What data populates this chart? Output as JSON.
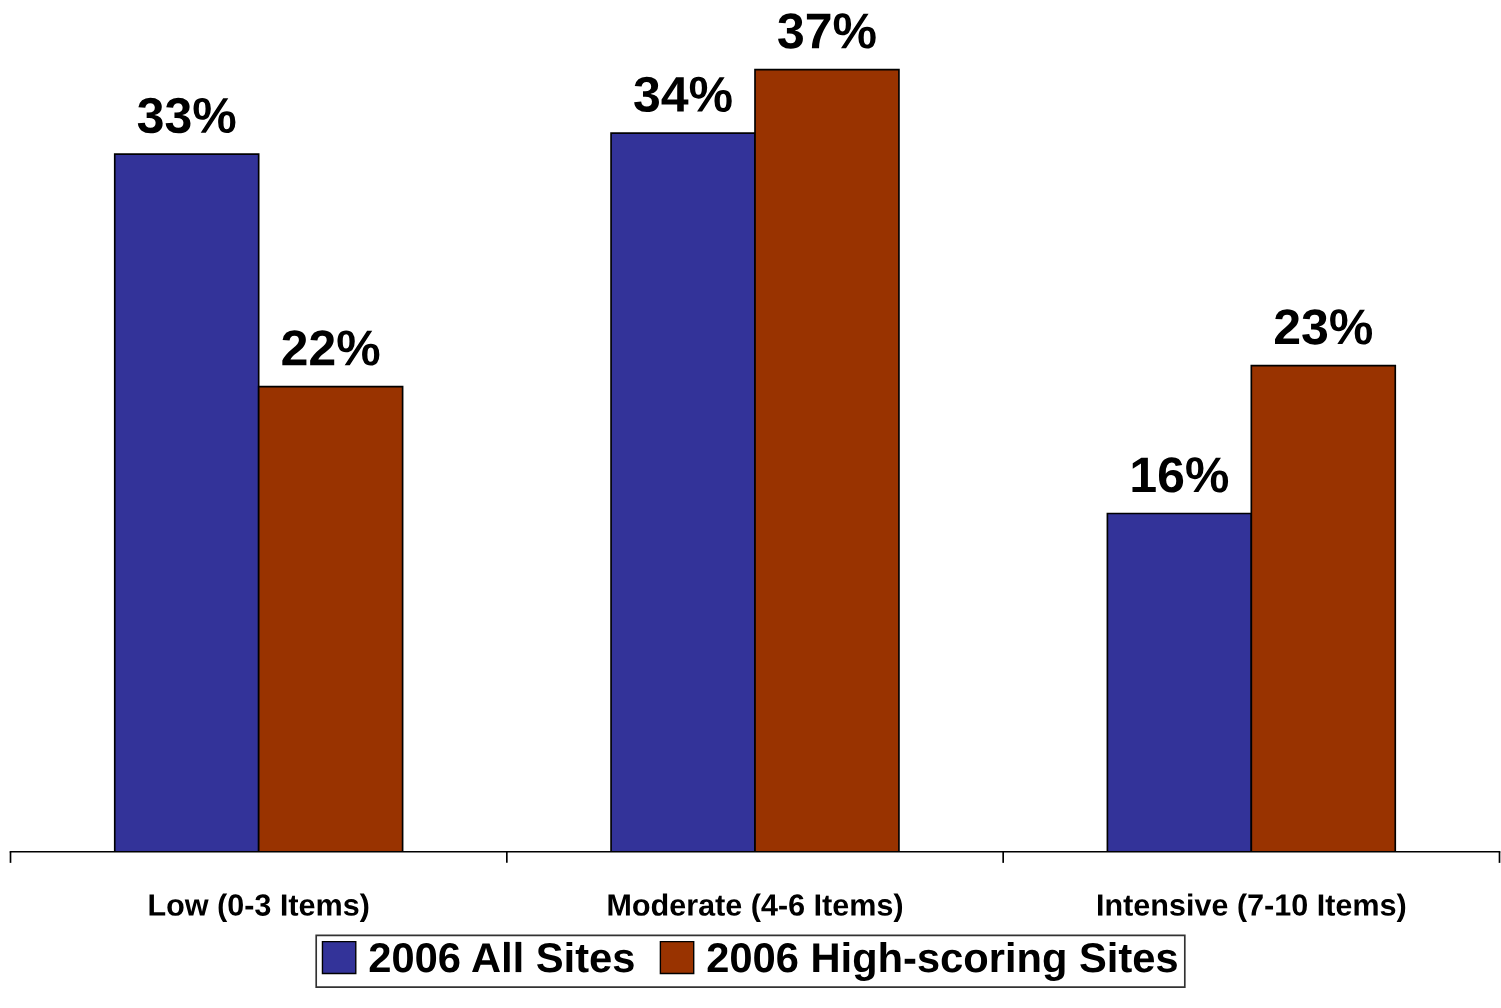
{
  "chart_data": {
    "type": "bar",
    "categories": [
      "Low (0-3 Items)",
      "Moderate (4-6 Items)",
      "Intensive (7-10 Items)"
    ],
    "series": [
      {
        "name": "2006 All Sites",
        "color": "#333399",
        "values": [
          33,
          34,
          16
        ],
        "value_labels": [
          "33%",
          "34%",
          "16%"
        ]
      },
      {
        "name": "2006 High-scoring Sites",
        "color": "#993300",
        "values": [
          22,
          37,
          23
        ],
        "value_labels": [
          "22%",
          "37%",
          "23%"
        ]
      }
    ],
    "legend": "bottom",
    "grid": false,
    "tick_labels": "x"
  }
}
